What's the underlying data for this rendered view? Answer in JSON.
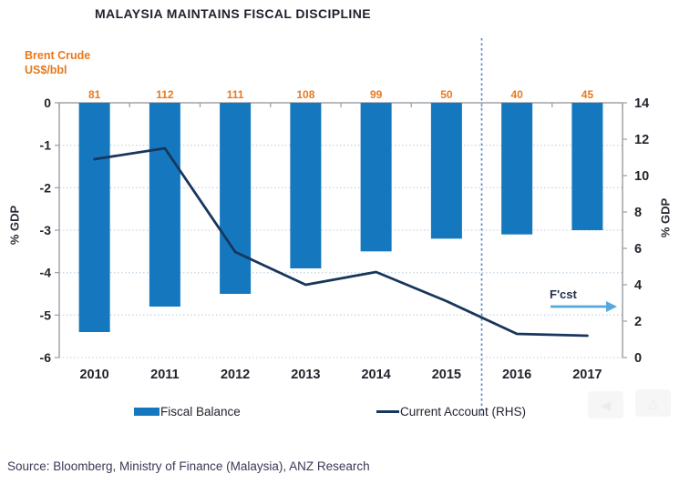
{
  "title": "MALAYSIA MAINTAINS FISCAL DISCIPLINE",
  "brent_label": {
    "line1": "Brent Crude",
    "line2": "US$/bbl"
  },
  "left_axis": {
    "label": "% GDP",
    "ticks": [
      0,
      -1,
      -2,
      -3,
      -4,
      -5,
      -6
    ]
  },
  "right_axis": {
    "label": "% GDP",
    "ticks": [
      14,
      12,
      10,
      8,
      6,
      4,
      2,
      0
    ]
  },
  "forecast": {
    "label": "F'cst"
  },
  "legend": {
    "items": [
      {
        "label": "Fiscal Balance",
        "swatch": "bar"
      },
      {
        "label": "Current Account (RHS)",
        "swatch": "line"
      }
    ]
  },
  "source": "Source: Bloomberg, Ministry of Finance (Malaysia), ANZ Research",
  "colors": {
    "bar": "#1578be",
    "line": "#17365d",
    "brent_text": "#e8791d",
    "axis_line": "#a0a4a8",
    "gridline": "#c9d8e4",
    "tick_text": "#23232e",
    "forecast_divider": "#4a86c8",
    "forecast_arrow": "#55a9de"
  },
  "chart_data": {
    "type": "bar",
    "title": "MALAYSIA MAINTAINS FISCAL DISCIPLINE",
    "categories": [
      "2010",
      "2011",
      "2012",
      "2013",
      "2014",
      "2015",
      "2016",
      "2017"
    ],
    "series": [
      {
        "name": "Fiscal Balance",
        "type": "bar",
        "axis": "left",
        "values": [
          -5.4,
          -4.8,
          -4.5,
          -3.9,
          -3.5,
          -3.2,
          -3.1,
          -3.0
        ]
      },
      {
        "name": "Current Account (RHS)",
        "type": "line",
        "axis": "right",
        "values": [
          10.9,
          11.5,
          5.8,
          4.0,
          4.7,
          3.1,
          1.3,
          1.2
        ]
      },
      {
        "name": "Brent Crude US$/bbl",
        "type": "data-labels",
        "axis": "none",
        "values": [
          81,
          112,
          111,
          108,
          99,
          50,
          40,
          45
        ]
      }
    ],
    "left_ylabel": "% GDP",
    "right_ylabel": "% GDP",
    "left_ylim": [
      -6,
      0
    ],
    "right_ylim": [
      0,
      14
    ],
    "grid": "dotted-horizontal",
    "forecast_divider_between": [
      "2015",
      "2016"
    ],
    "forecast_annotation": "F'cst",
    "legend_position": "bottom"
  }
}
